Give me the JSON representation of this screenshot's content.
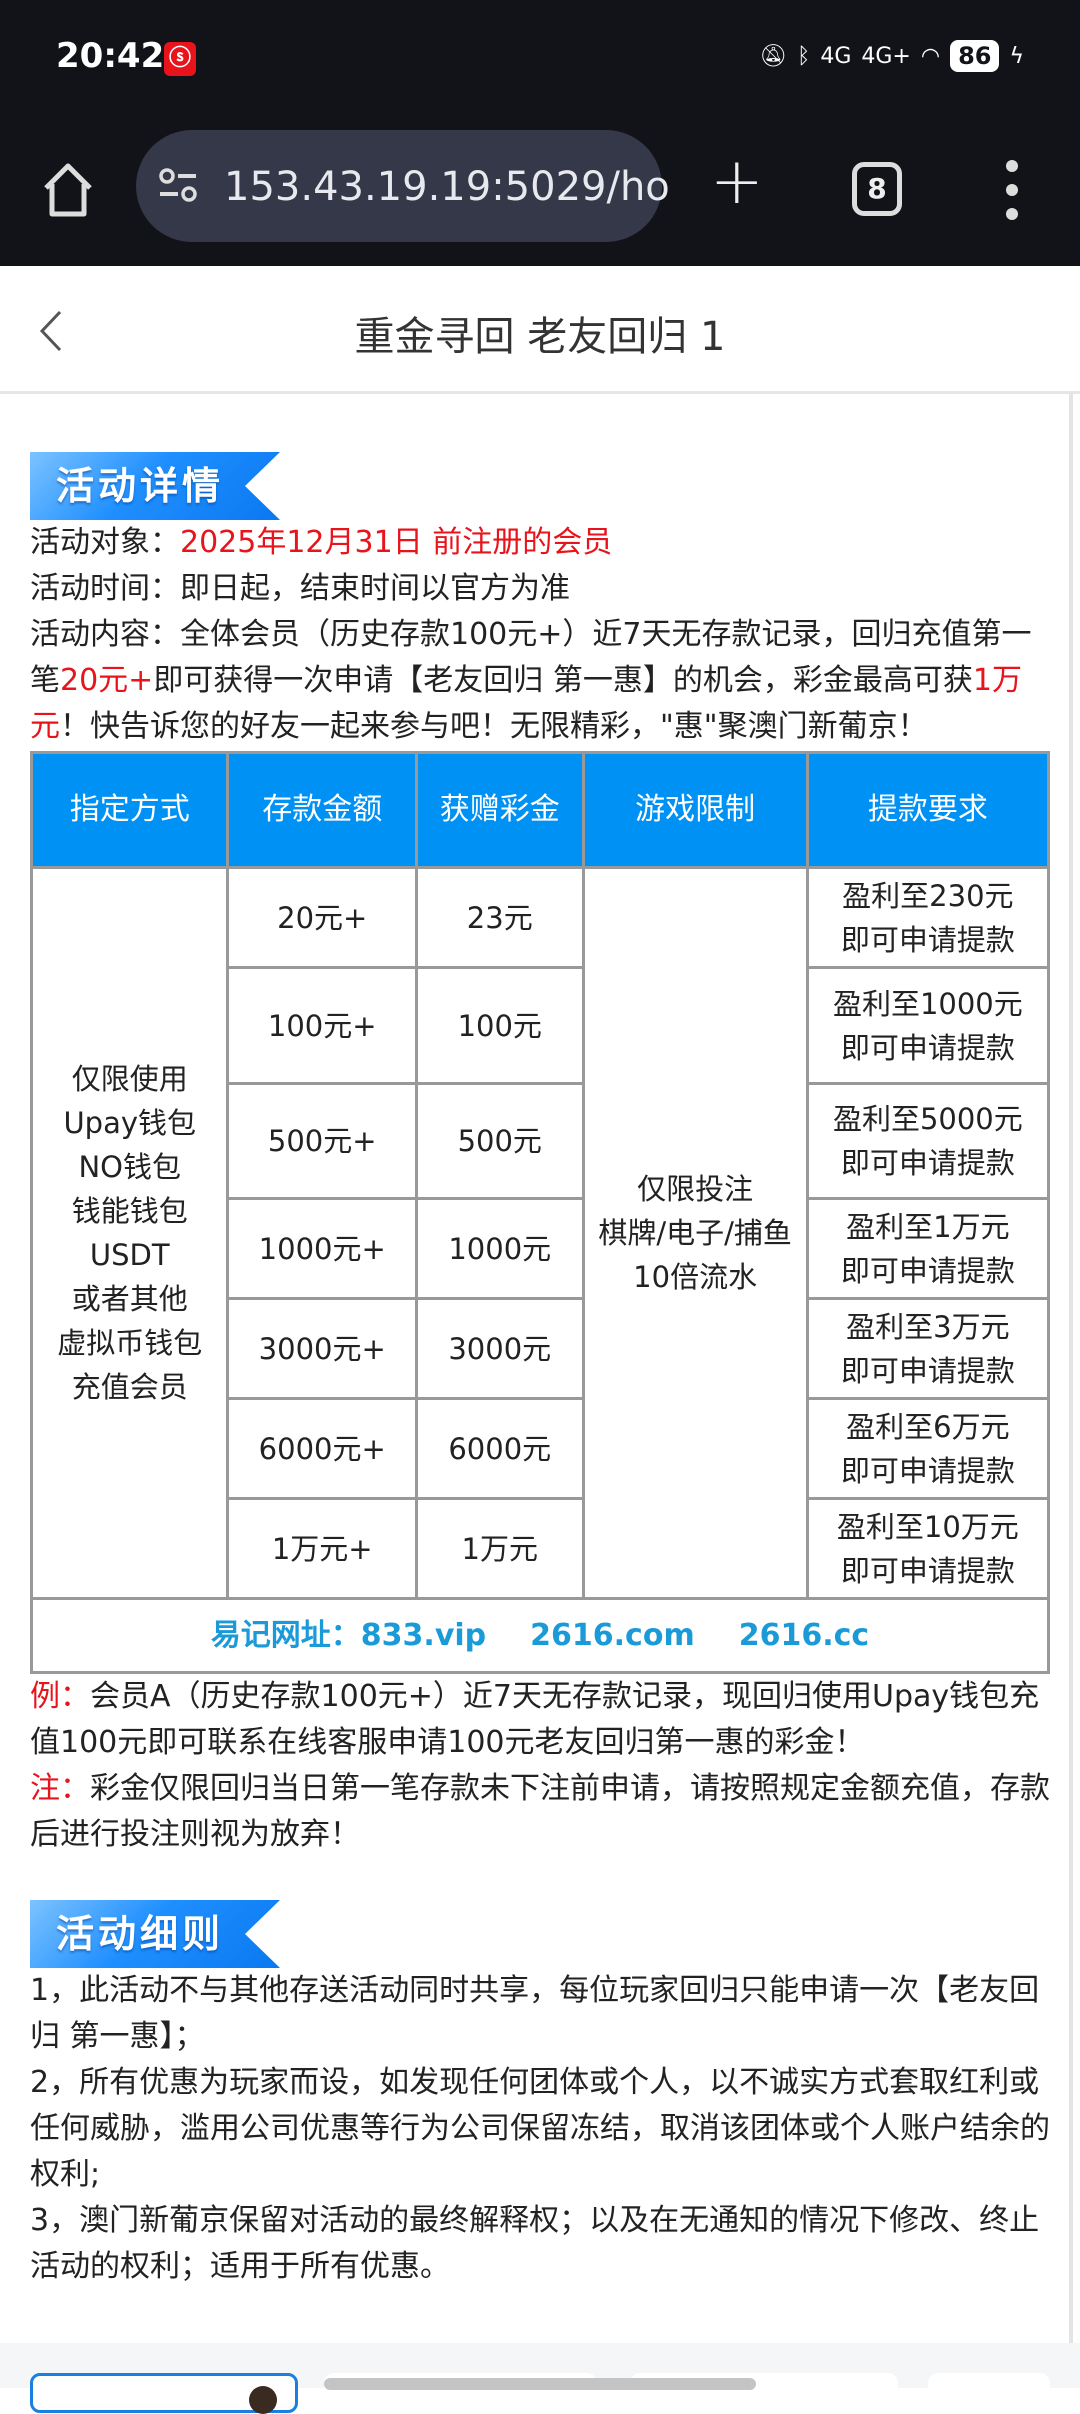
{
  "status_bar": {
    "time": "20:42",
    "network1": "4G",
    "network2": "4G+",
    "battery": "86"
  },
  "browser": {
    "url": "153.43.19.19:5029/ho",
    "tab_count": "8"
  },
  "header": {
    "title": "重金寻回 老友回归 1"
  },
  "details": {
    "banner": "活动详情",
    "target_label": "活动对象：",
    "target_value": "2025年12月31日 前注册的会员",
    "time_line": "活动时间：即日起，结束时间以官方为准",
    "content_part1": "活动内容：全体会员（历史存款100元+）近7天无存款记录，回归充值第一笔",
    "content_red1": "20元+",
    "content_part2": "即可获得一次申请【老友回归 第一惠】的机会，彩金最高可获",
    "content_red2": "1万元",
    "content_part3": "！快告诉您的好友一起来参与吧！无限精彩，\"惠\"聚澳门新葡京！"
  },
  "table": {
    "headers": [
      "指定方式",
      "存款金额",
      "获赠彩金",
      "游戏限制",
      "提款要求"
    ],
    "method": [
      "仅限使用",
      "Upay钱包",
      "NO钱包",
      "钱能钱包",
      "USDT",
      "或者其他",
      "虚拟币钱包",
      "充值会员"
    ],
    "game_limit": [
      "仅限投注",
      "棋牌/电子/捕鱼",
      "10倍流水"
    ],
    "rows": [
      {
        "deposit": "20元+",
        "bonus": "23元",
        "withdraw1": "盈利至230元",
        "withdraw2": "即可申请提款"
      },
      {
        "deposit": "100元+",
        "bonus": "100元",
        "withdraw1": "盈利至1000元",
        "withdraw2": "即可申请提款"
      },
      {
        "deposit": "500元+",
        "bonus": "500元",
        "withdraw1": "盈利至5000元",
        "withdraw2": "即可申请提款"
      },
      {
        "deposit": "1000元+",
        "bonus": "1000元",
        "withdraw1": "盈利至1万元",
        "withdraw2": "即可申请提款"
      },
      {
        "deposit": "3000元+",
        "bonus": "3000元",
        "withdraw1": "盈利至3万元",
        "withdraw2": "即可申请提款"
      },
      {
        "deposit": "6000元+",
        "bonus": "6000元",
        "withdraw1": "盈利至6万元",
        "withdraw2": "即可申请提款"
      },
      {
        "deposit": "1万元+",
        "bonus": "1万元",
        "withdraw1": "盈利至10万元",
        "withdraw2": "即可申请提款"
      }
    ],
    "footer_label": "易记网址：833.vip",
    "footer_link2": "2616.com",
    "footer_link3": "2616.cc"
  },
  "notes": {
    "example_label": "例：",
    "example_text": "会员A（历史存款100元+）近7天无存款记录，现回归使用Upay钱包充值100元即可联系在线客服申请100元老友回归第一惠的彩金！",
    "note_label": "注：",
    "note_text": "彩金仅限回归当日第一笔存款未下注前申请，请按照规定金额充值，存款后进行投注则视为放弃！"
  },
  "rules": {
    "banner": "活动细则",
    "items": [
      "1，此活动不与其他存送活动同时共享，每位玩家回归只能申请一次【老友回归 第一惠】；",
      "2，所有优惠为玩家而设，如发现任何团体或个人，以不诚实方式套取红利或任何威胁，滥用公司优惠等行为公司保留冻结，取消该团体或个人账户结余的权利;",
      "3，澳门新葡京保留对活动的最终解释权；以及在无通知的情况下修改、终止活动的权利；适用于所有优惠。"
    ]
  },
  "colors": {
    "accent_blue": "#0091f5",
    "highlight_red": "#e8141b",
    "link_blue": "#1a9bd8"
  }
}
